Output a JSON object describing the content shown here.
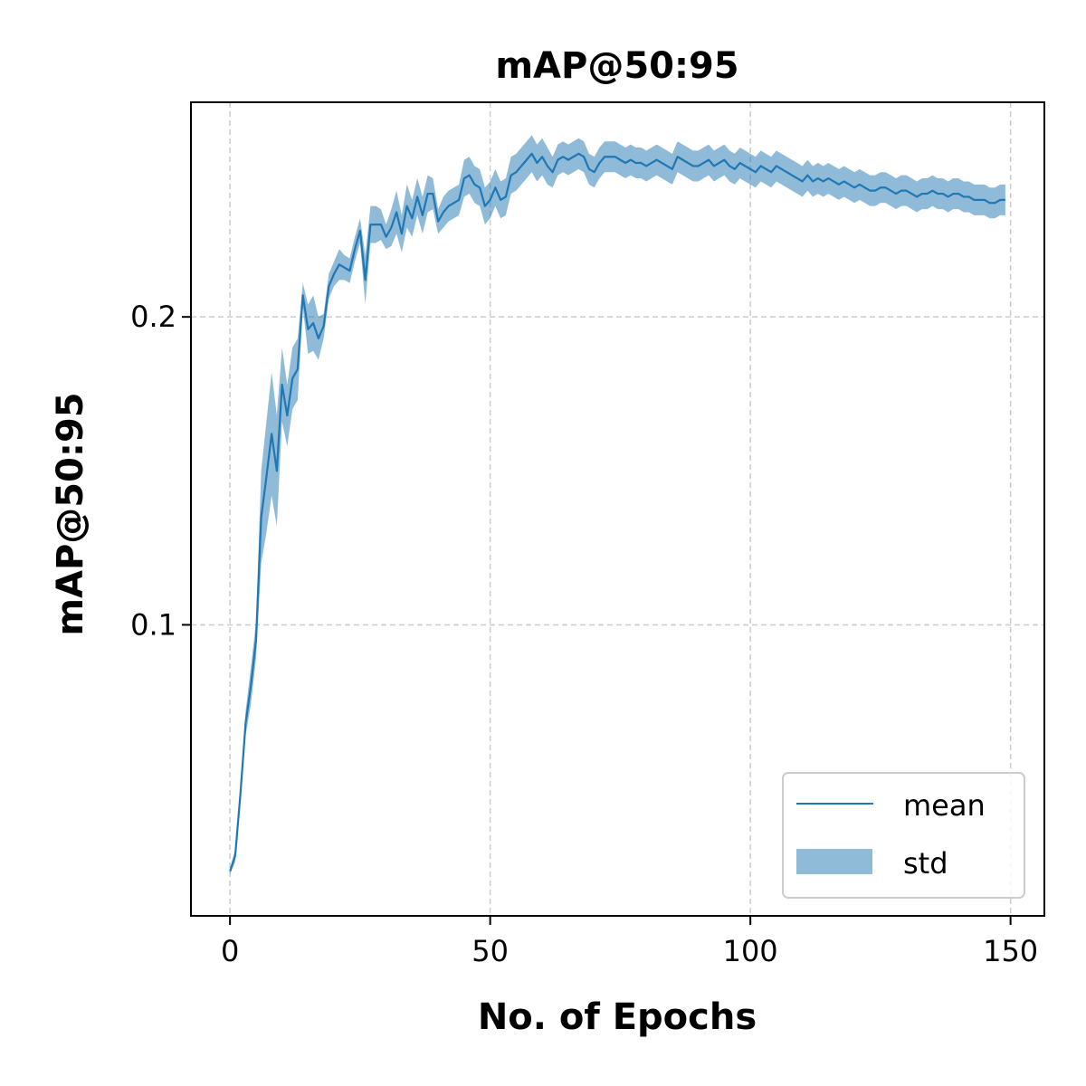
{
  "chart_data": {
    "type": "line",
    "title": "mAP@50:95",
    "xlabel": "No. of Epochs",
    "ylabel": "mAP@50:95",
    "xlim": [
      -7.5,
      156.5
    ],
    "ylim": [
      0.0055,
      0.2697
    ],
    "xticks": [
      0,
      50,
      100,
      150
    ],
    "xtick_labels": [
      "0",
      "50",
      "100",
      "150"
    ],
    "yticks": [
      0.1,
      0.2
    ],
    "ytick_labels": [
      "0.1",
      "0.2"
    ],
    "grid": true,
    "legend": {
      "position": "lower right",
      "entries": [
        "mean",
        "std"
      ]
    },
    "colors": {
      "mean": "#1f77b4",
      "std": "#1f77b4",
      "std_opacity": 0.5
    },
    "series": [
      {
        "name": "mean",
        "x": [
          0,
          1,
          2,
          3,
          4,
          5,
          6,
          7,
          8,
          9,
          10,
          11,
          12,
          13,
          14,
          15,
          16,
          17,
          18,
          19,
          20,
          21,
          22,
          23,
          24,
          25,
          26,
          27,
          28,
          29,
          30,
          31,
          32,
          33,
          34,
          35,
          36,
          37,
          38,
          39,
          40,
          41,
          42,
          43,
          44,
          45,
          46,
          47,
          48,
          49,
          50,
          51,
          52,
          53,
          54,
          55,
          56,
          57,
          58,
          59,
          60,
          61,
          62,
          63,
          64,
          65,
          66,
          67,
          68,
          69,
          70,
          71,
          72,
          73,
          74,
          75,
          76,
          77,
          78,
          79,
          80,
          81,
          82,
          83,
          84,
          85,
          86,
          87,
          88,
          89,
          90,
          91,
          92,
          93,
          94,
          95,
          96,
          97,
          98,
          99,
          100,
          101,
          102,
          103,
          104,
          105,
          106,
          107,
          108,
          109,
          110,
          111,
          112,
          113,
          114,
          115,
          116,
          117,
          118,
          119,
          120,
          121,
          122,
          123,
          124,
          125,
          126,
          127,
          128,
          129,
          130,
          131,
          132,
          133,
          134,
          135,
          136,
          137,
          138,
          139,
          140,
          141,
          142,
          143,
          144,
          145,
          146,
          147,
          148,
          149
        ],
        "values": [
          0.02,
          0.025,
          0.045,
          0.068,
          0.08,
          0.095,
          0.135,
          0.148,
          0.162,
          0.15,
          0.178,
          0.168,
          0.18,
          0.183,
          0.207,
          0.196,
          0.198,
          0.193,
          0.197,
          0.21,
          0.214,
          0.217,
          0.216,
          0.215,
          0.222,
          0.228,
          0.212,
          0.23,
          0.23,
          0.23,
          0.226,
          0.229,
          0.234,
          0.227,
          0.236,
          0.232,
          0.239,
          0.233,
          0.24,
          0.24,
          0.231,
          0.234,
          0.236,
          0.237,
          0.238,
          0.245,
          0.246,
          0.243,
          0.242,
          0.236,
          0.238,
          0.242,
          0.238,
          0.239,
          0.246,
          0.247,
          0.249,
          0.251,
          0.253,
          0.25,
          0.252,
          0.249,
          0.247,
          0.251,
          0.252,
          0.251,
          0.252,
          0.253,
          0.252,
          0.248,
          0.247,
          0.25,
          0.252,
          0.252,
          0.252,
          0.251,
          0.25,
          0.251,
          0.25,
          0.25,
          0.249,
          0.25,
          0.251,
          0.25,
          0.249,
          0.248,
          0.252,
          0.251,
          0.25,
          0.249,
          0.249,
          0.25,
          0.251,
          0.249,
          0.25,
          0.251,
          0.249,
          0.248,
          0.25,
          0.249,
          0.248,
          0.247,
          0.249,
          0.248,
          0.247,
          0.249,
          0.248,
          0.247,
          0.246,
          0.245,
          0.244,
          0.246,
          0.244,
          0.245,
          0.244,
          0.245,
          0.244,
          0.243,
          0.244,
          0.243,
          0.242,
          0.243,
          0.242,
          0.241,
          0.241,
          0.242,
          0.242,
          0.241,
          0.24,
          0.241,
          0.241,
          0.24,
          0.239,
          0.24,
          0.24,
          0.241,
          0.24,
          0.24,
          0.239,
          0.24,
          0.24,
          0.239,
          0.239,
          0.238,
          0.238,
          0.238,
          0.237,
          0.237,
          0.238,
          0.238
        ]
      },
      {
        "name": "std",
        "type": "band",
        "x": [
          0,
          1,
          2,
          3,
          4,
          5,
          6,
          7,
          8,
          9,
          10,
          11,
          12,
          13,
          14,
          15,
          16,
          17,
          18,
          19,
          20,
          21,
          22,
          23,
          24,
          25,
          26,
          27,
          28,
          29,
          30,
          31,
          32,
          33,
          34,
          35,
          36,
          37,
          38,
          39,
          40,
          41,
          42,
          43,
          44,
          45,
          46,
          47,
          48,
          49,
          50,
          51,
          52,
          53,
          54,
          55,
          56,
          57,
          58,
          59,
          60,
          61,
          62,
          63,
          64,
          65,
          66,
          67,
          68,
          69,
          70,
          71,
          72,
          73,
          74,
          75,
          76,
          77,
          78,
          79,
          80,
          81,
          82,
          83,
          84,
          85,
          86,
          87,
          88,
          89,
          90,
          91,
          92,
          93,
          94,
          95,
          96,
          97,
          98,
          99,
          100,
          101,
          102,
          103,
          104,
          105,
          106,
          107,
          108,
          109,
          110,
          111,
          112,
          113,
          114,
          115,
          116,
          117,
          118,
          119,
          120,
          121,
          122,
          123,
          124,
          125,
          126,
          127,
          128,
          129,
          130,
          131,
          132,
          133,
          134,
          135,
          136,
          137,
          138,
          139,
          140,
          141,
          142,
          143,
          144,
          145,
          146,
          147,
          148,
          149
        ],
        "values": [
          0.001,
          0.002,
          0.003,
          0.004,
          0.006,
          0.006,
          0.015,
          0.018,
          0.02,
          0.018,
          0.012,
          0.01,
          0.01,
          0.01,
          0.004,
          0.008,
          0.009,
          0.007,
          0.004,
          0.004,
          0.004,
          0.005,
          0.004,
          0.004,
          0.004,
          0.004,
          0.008,
          0.006,
          0.006,
          0.005,
          0.004,
          0.006,
          0.007,
          0.006,
          0.007,
          0.006,
          0.006,
          0.006,
          0.006,
          0.005,
          0.004,
          0.005,
          0.005,
          0.005,
          0.005,
          0.006,
          0.006,
          0.006,
          0.006,
          0.006,
          0.006,
          0.006,
          0.006,
          0.006,
          0.006,
          0.006,
          0.006,
          0.006,
          0.006,
          0.006,
          0.006,
          0.006,
          0.005,
          0.005,
          0.005,
          0.005,
          0.005,
          0.005,
          0.005,
          0.005,
          0.005,
          0.005,
          0.005,
          0.005,
          0.005,
          0.005,
          0.005,
          0.005,
          0.005,
          0.005,
          0.005,
          0.005,
          0.005,
          0.005,
          0.005,
          0.005,
          0.005,
          0.005,
          0.005,
          0.005,
          0.005,
          0.005,
          0.005,
          0.005,
          0.005,
          0.005,
          0.005,
          0.005,
          0.005,
          0.005,
          0.005,
          0.005,
          0.005,
          0.005,
          0.005,
          0.005,
          0.005,
          0.005,
          0.005,
          0.005,
          0.005,
          0.005,
          0.005,
          0.005,
          0.005,
          0.005,
          0.005,
          0.005,
          0.005,
          0.005,
          0.005,
          0.005,
          0.005,
          0.005,
          0.005,
          0.005,
          0.005,
          0.005,
          0.005,
          0.005,
          0.005,
          0.005,
          0.005,
          0.005,
          0.005,
          0.005,
          0.005,
          0.005,
          0.005,
          0.005,
          0.005,
          0.005,
          0.005,
          0.005,
          0.005,
          0.005,
          0.005,
          0.005,
          0.005,
          0.005
        ]
      }
    ]
  }
}
